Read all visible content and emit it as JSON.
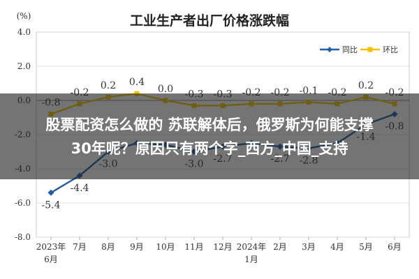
{
  "chart_data": {
    "type": "line",
    "title": "工业生产者出厂价格涨跌幅",
    "ylabel": "(%)",
    "ylim": [
      -8.0,
      4.0
    ],
    "yticks": [
      "4.0",
      "2.0",
      "0.0",
      "-2.0",
      "-4.0",
      "-6.0",
      "-8.0"
    ],
    "ytick_values": [
      4,
      2,
      0,
      -2,
      -4,
      -6,
      -8
    ],
    "categories": [
      "2023年6月",
      "7月",
      "8月",
      "9月",
      "10月",
      "11月",
      "12月",
      "2024年1月",
      "2月",
      "3月",
      "4月",
      "5月",
      "6月"
    ],
    "category_lines": [
      [
        "2023年",
        "6月"
      ],
      [
        "7月"
      ],
      [
        "8月"
      ],
      [
        "9月"
      ],
      [
        "10月"
      ],
      [
        "11月"
      ],
      [
        "12月"
      ],
      [
        "2024年",
        "1月"
      ],
      [
        "2月"
      ],
      [
        "3月"
      ],
      [
        "4月"
      ],
      [
        "5月"
      ],
      [
        "6月"
      ]
    ],
    "grid": true,
    "legend_position": "top-right",
    "series": [
      {
        "name": "同比",
        "color": "#1f5fa8",
        "values": [
          -5.4,
          -4.4,
          -3.0,
          -2.5,
          -2.6,
          -3.0,
          -2.7,
          -2.5,
          -2.7,
          -2.8,
          -2.5,
          -1.4,
          -0.8
        ],
        "labels": [
          "-5.4",
          "-4.4",
          "-3.0",
          "",
          "",
          "-3.0",
          "-2.7",
          "",
          "-2.7",
          "-2.8",
          "",
          "-1.4",
          "-0.8"
        ]
      },
      {
        "name": "环比",
        "color": "#f2c200",
        "values": [
          -0.8,
          -0.2,
          0.2,
          0.4,
          0.0,
          -0.3,
          -0.3,
          -0.2,
          -0.2,
          -0.1,
          -0.2,
          0.2,
          -0.2
        ],
        "labels": [
          "-0.8",
          "-0.2",
          "0.2",
          "0.4",
          "0.0",
          "-0.3",
          "-0.3",
          "-0.2",
          "-0.2",
          "-0.1",
          "-0.2",
          "0.2",
          "-0.2"
        ]
      }
    ]
  },
  "overlay": {
    "line1": "股票配资怎么做的 苏联解体后，俄罗斯为何能支撑",
    "line2": "30年呢？原因只有两个字_西方_中国_支持"
  }
}
